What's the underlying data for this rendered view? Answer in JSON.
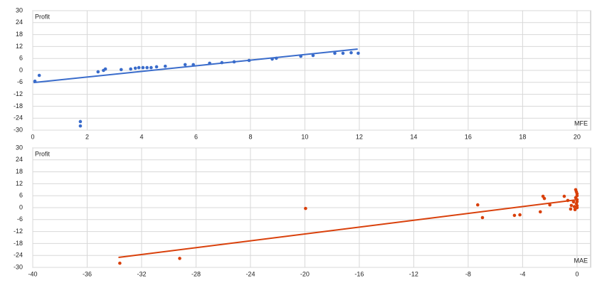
{
  "chart_data": [
    {
      "type": "scatter",
      "ylabel": "Profit",
      "xlabel": "MFE",
      "color": "#3a6ccb",
      "grid": true,
      "xlim": [
        0,
        20.5
      ],
      "xticks": [
        0,
        2,
        4,
        6,
        8,
        10,
        12,
        14,
        16,
        18,
        20
      ],
      "ylim": [
        -30,
        30
      ],
      "yticks": [
        -30,
        -24,
        -18,
        -12,
        -6,
        0,
        6,
        12,
        18,
        24,
        30
      ],
      "x": [
        0.08,
        0.24,
        1.75,
        1.75,
        2.4,
        2.6,
        2.67,
        3.25,
        3.6,
        3.77,
        3.9,
        4.05,
        4.2,
        4.35,
        4.55,
        4.87,
        5.6,
        5.9,
        6.5,
        6.95,
        7.4,
        7.95,
        8.8,
        8.95,
        9.85,
        10.3,
        11.1,
        11.4,
        11.7,
        11.96
      ],
      "y": [
        -5.4,
        -2.5,
        -25.7,
        -27.9,
        -0.7,
        0,
        0.7,
        0.4,
        0.7,
        1.1,
        1.4,
        1.4,
        1.4,
        1.4,
        1.8,
        2.1,
        2.9,
        2.9,
        3.6,
        3.9,
        4.3,
        5,
        5.7,
        6.1,
        7.1,
        7.5,
        8.6,
        8.6,
        8.9,
        8.6
      ],
      "trend": {
        "x": [
          0.03,
          11.94
        ],
        "y": [
          -6.1,
          10.7
        ]
      }
    },
    {
      "type": "scatter",
      "ylabel": "Profit",
      "xlabel": "MAE",
      "color": "#d9400b",
      "grid": true,
      "xlim": [
        -40,
        1
      ],
      "xticks": [
        -40,
        -36,
        -32,
        -28,
        -24,
        -20,
        -16,
        -12,
        -8,
        -4,
        0
      ],
      "ylim": [
        -30,
        30
      ],
      "yticks": [
        -30,
        -24,
        -18,
        -12,
        -6,
        0,
        6,
        12,
        18,
        24,
        30
      ],
      "x": [
        -33.6,
        -29.2,
        -19.95,
        -7.3,
        -6.95,
        -4.6,
        -4.2,
        -2.5,
        -2.4,
        -2.7,
        -2,
        -0.94,
        -0.68,
        -0.42,
        -0.47,
        -0.26,
        -0.1,
        -0.05,
        0,
        0,
        -0.1,
        0,
        0,
        -0.05,
        0,
        0,
        -0.15,
        -0.2
      ],
      "y": [
        -27.9,
        -25.5,
        -0.4,
        1.4,
        -5,
        -3.9,
        -3.6,
        5.7,
        4.6,
        -2.1,
        1.4,
        5.7,
        3.6,
        1.1,
        -0.7,
        2.9,
        9,
        8,
        7,
        6,
        5,
        4,
        3,
        2,
        1,
        0,
        -1,
        0.5
      ],
      "trend": {
        "x": [
          -33.7,
          -0.1
        ],
        "y": [
          -25,
          3.9
        ]
      }
    }
  ]
}
